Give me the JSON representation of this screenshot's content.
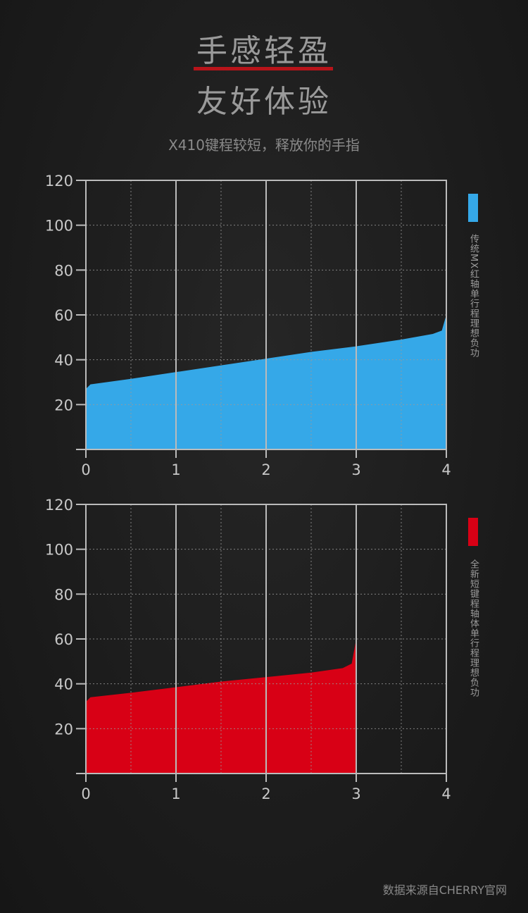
{
  "header": {
    "title_line1": "手感轻盈",
    "title_line2": "友好体验",
    "subtitle": "X410键程较短，释放你的手指"
  },
  "colors": {
    "accent_red": "#b8141a",
    "blue": "#35a8e8",
    "red": "#d80015",
    "axis": "#bbbbbb",
    "grid": "#9a9a9a"
  },
  "chart_data": [
    {
      "type": "area",
      "x": [
        0,
        0.05,
        0.5,
        1,
        1.5,
        2,
        2.5,
        3,
        3.5,
        3.85,
        3.95,
        4
      ],
      "y": [
        27,
        29,
        31.5,
        34.5,
        37.5,
        40.5,
        43.5,
        46,
        49,
        51.5,
        53,
        60
      ],
      "xlim": [
        0,
        4
      ],
      "ylim": [
        0,
        120
      ],
      "x_ticks": [
        "0",
        "1",
        "2",
        "3",
        "4"
      ],
      "y_ticks": [
        "20",
        "40",
        "60",
        "80",
        "100",
        "120"
      ],
      "legend": "传统MX红轴单行程理想负功",
      "color": "#35a8e8",
      "grid": true
    },
    {
      "type": "area",
      "x": [
        0,
        0.05,
        0.5,
        1,
        1.5,
        2,
        2.5,
        2.85,
        2.95,
        3
      ],
      "y": [
        32,
        34,
        36,
        38.5,
        41,
        43,
        45,
        47,
        49,
        60
      ],
      "xlim": [
        0,
        4
      ],
      "ylim": [
        0,
        120
      ],
      "x_ticks": [
        "0",
        "1",
        "2",
        "3",
        "4"
      ],
      "y_ticks": [
        "20",
        "40",
        "60",
        "80",
        "100",
        "120"
      ],
      "legend": "全新短键程轴体单行程理想负功",
      "color": "#d80015",
      "grid": true
    }
  ],
  "footer": {
    "source": "数据来源自CHERRY官网"
  }
}
